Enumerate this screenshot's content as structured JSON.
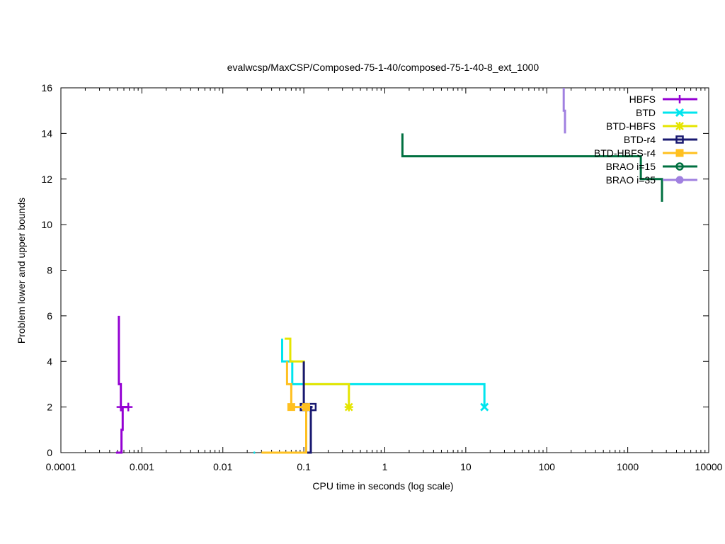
{
  "chart_data": {
    "type": "line",
    "title": "evalwcsp/MaxCSP/Composed-75-1-40/composed-75-1-40-8_ext_1000",
    "xlabel": "CPU time in seconds (log scale)",
    "ylabel": "Problem lower and upper bounds",
    "xscale": "log",
    "xlim": [
      0.0001,
      10000
    ],
    "ylim": [
      0,
      16
    ],
    "xticks": [
      {
        "value": 0.0001,
        "label": "0.0001"
      },
      {
        "value": 0.001,
        "label": "0.001"
      },
      {
        "value": 0.01,
        "label": "0.01"
      },
      {
        "value": 0.1,
        "label": "0.1"
      },
      {
        "value": 1,
        "label": "1"
      },
      {
        "value": 10,
        "label": "10"
      },
      {
        "value": 100,
        "label": "100"
      },
      {
        "value": 1000,
        "label": "1000"
      },
      {
        "value": 10000,
        "label": "10000"
      }
    ],
    "yticks": [
      {
        "value": 0,
        "label": "0"
      },
      {
        "value": 2,
        "label": "2"
      },
      {
        "value": 4,
        "label": "4"
      },
      {
        "value": 6,
        "label": "6"
      },
      {
        "value": 8,
        "label": "8"
      },
      {
        "value": 10,
        "label": "10"
      },
      {
        "value": 12,
        "label": "12"
      },
      {
        "value": 14,
        "label": "14"
      },
      {
        "value": 16,
        "label": "16"
      }
    ],
    "grid": false,
    "legend_position": "top-right",
    "series": [
      {
        "name": "HBFS",
        "color": "#9400d3",
        "marker": "plus",
        "upper": [
          [
            0.00052,
            6
          ],
          [
            0.00052,
            3
          ],
          [
            0.00055,
            3
          ],
          [
            0.00055,
            2
          ],
          [
            0.00068,
            2
          ]
        ],
        "lower": [
          [
            0.00048,
            0
          ],
          [
            0.00056,
            0
          ],
          [
            0.00056,
            1
          ],
          [
            0.00058,
            1
          ],
          [
            0.00058,
            2
          ],
          [
            0.00068,
            2
          ]
        ],
        "markers": [
          [
            0.00055,
            2
          ],
          [
            0.00068,
            2
          ]
        ]
      },
      {
        "name": "BTD",
        "color": "#00e5ee",
        "marker": "x",
        "upper": [
          [
            0.054,
            5
          ],
          [
            0.054,
            4
          ],
          [
            0.072,
            4
          ],
          [
            0.072,
            3
          ],
          [
            17,
            3
          ],
          [
            17,
            2
          ]
        ],
        "lower": [
          [
            0.024,
            0
          ],
          [
            0.025,
            0
          ]
        ],
        "markers": [
          [
            17,
            2
          ]
        ]
      },
      {
        "name": "BTD-HBFS",
        "color": "#e5e500",
        "marker": "asterisk",
        "upper": [
          [
            0.058,
            5
          ],
          [
            0.068,
            5
          ],
          [
            0.068,
            4
          ],
          [
            0.1,
            4
          ],
          [
            0.1,
            3
          ],
          [
            0.36,
            3
          ],
          [
            0.36,
            2
          ]
        ],
        "lower": [],
        "markers": [
          [
            0.36,
            2
          ]
        ]
      },
      {
        "name": "BTD-r4",
        "color": "#191970",
        "marker": "square",
        "upper": [
          [
            0.1,
            4
          ],
          [
            0.1,
            2
          ],
          [
            0.128,
            2
          ]
        ],
        "lower": [
          [
            0.045,
            0
          ],
          [
            0.122,
            0
          ],
          [
            0.122,
            2
          ],
          [
            0.128,
            2
          ]
        ],
        "markers": [
          [
            0.1,
            2
          ],
          [
            0.128,
            2
          ]
        ]
      },
      {
        "name": "BTD-HBFS-r4",
        "color": "#ffc020",
        "marker": "filled-square",
        "upper": [
          [
            0.062,
            4
          ],
          [
            0.062,
            3
          ],
          [
            0.07,
            3
          ],
          [
            0.07,
            2
          ],
          [
            0.107,
            2
          ]
        ],
        "lower": [
          [
            0.03,
            0
          ],
          [
            0.107,
            0
          ],
          [
            0.107,
            2
          ]
        ],
        "markers": [
          [
            0.07,
            2
          ],
          [
            0.107,
            2
          ]
        ]
      },
      {
        "name": "BRAO i=15",
        "color": "#007040",
        "marker": "circle",
        "upper": [
          [
            1.65,
            14
          ],
          [
            1.65,
            13
          ],
          [
            1450,
            13
          ],
          [
            1450,
            12
          ],
          [
            2650,
            12
          ],
          [
            2650,
            11
          ]
        ],
        "lower": [],
        "markers": []
      },
      {
        "name": "BRAO i=35",
        "color": "#a080e0",
        "marker": "filled-circle",
        "upper": [
          [
            162,
            16
          ],
          [
            162,
            15
          ],
          [
            168,
            15
          ],
          [
            168,
            14
          ]
        ],
        "lower": [],
        "markers": []
      }
    ]
  }
}
